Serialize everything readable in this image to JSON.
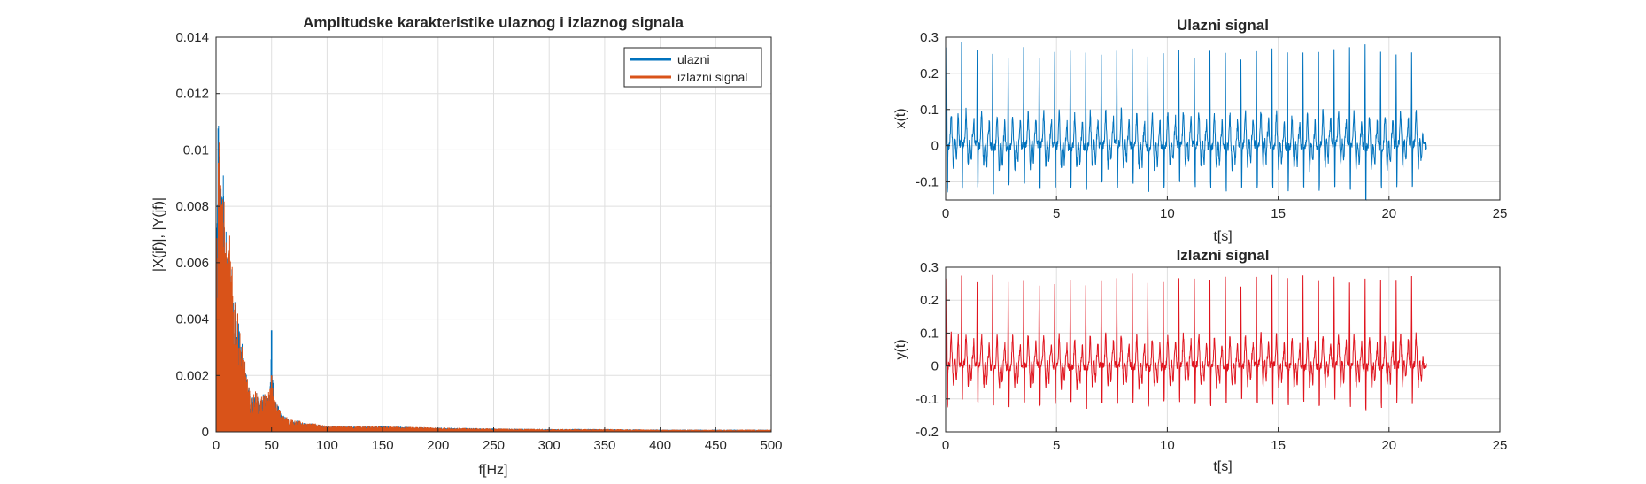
{
  "chart_data": [
    {
      "type": "line",
      "title": "Amplitudske karakteristike ulaznog i izlaznog signala",
      "xlabel": "f[Hz]",
      "ylabel": "|X(jf)|, |Y(jf)|",
      "xlim": [
        0,
        500
      ],
      "ylim": [
        0,
        0.014
      ],
      "xticks": [
        "0",
        "50",
        "100",
        "150",
        "200",
        "250",
        "300",
        "350",
        "400",
        "450",
        "500"
      ],
      "yticks": [
        "0",
        "0.002",
        "0.004",
        "0.006",
        "0.008",
        "0.01",
        "0.012",
        "0.014"
      ],
      "grid": true,
      "legend_position": "top-right",
      "series": [
        {
          "name": "ulazni",
          "color": "#0072bd",
          "envelope": {
            "f": [
              0,
              1,
              2,
              3,
              4,
              5,
              6,
              7,
              8,
              9,
              10,
              12,
              14,
              16,
              18,
              20,
              22,
              24,
              26,
              28,
              30,
              32,
              35,
              38,
              40,
              42,
              45,
              48,
              50,
              52,
              55,
              60,
              65,
              70,
              75,
              80,
              90,
              100,
              120,
              150,
              200,
              250,
              300,
              350,
              400,
              450,
              500
            ],
            "max": [
              0.002,
              0.009,
              0.0123,
              0.011,
              0.0095,
              0.009,
              0.0105,
              0.0085,
              0.0075,
              0.0072,
              0.0065,
              0.0072,
              0.006,
              0.0055,
              0.0048,
              0.004,
              0.0035,
              0.003,
              0.0025,
              0.002,
              0.0015,
              0.0012,
              0.0015,
              0.0013,
              0.0012,
              0.0014,
              0.0013,
              0.0015,
              0.0036,
              0.0012,
              0.001,
              0.0006,
              0.0005,
              0.0004,
              0.0004,
              0.0003,
              0.0003,
              0.0002,
              0.0002,
              0.0002,
              0.00015,
              0.00012,
              0.0001,
              0.0001,
              8e-05,
              8e-05,
              8e-05
            ]
          }
        },
        {
          "name": "izlazni signal",
          "color": "#d95319",
          "envelope": {
            "f": [
              0,
              1,
              2,
              3,
              4,
              5,
              6,
              7,
              8,
              9,
              10,
              12,
              14,
              16,
              18,
              20,
              22,
              24,
              26,
              28,
              30,
              32,
              35,
              38,
              40,
              42,
              45,
              48,
              50,
              52,
              55,
              60,
              65,
              70,
              75,
              80,
              90,
              100,
              120,
              150,
              200,
              250,
              300,
              350,
              400,
              450,
              500
            ],
            "max": [
              0.002,
              0.009,
              0.0123,
              0.011,
              0.0095,
              0.009,
              0.0105,
              0.0085,
              0.0075,
              0.0072,
              0.0065,
              0.0072,
              0.006,
              0.0055,
              0.0048,
              0.004,
              0.0035,
              0.003,
              0.0025,
              0.002,
              0.0015,
              0.0012,
              0.0015,
              0.0013,
              0.0012,
              0.0014,
              0.0013,
              0.0015,
              0.002,
              0.0012,
              0.001,
              0.0006,
              0.0005,
              0.0004,
              0.0004,
              0.0003,
              0.0003,
              0.0002,
              0.0002,
              0.0002,
              0.00015,
              0.00012,
              0.0001,
              0.0001,
              8e-05,
              8e-05,
              8e-05
            ]
          }
        }
      ]
    },
    {
      "type": "line",
      "title": "Ulazni signal",
      "xlabel": "t[s]",
      "ylabel": "x(t)",
      "xlim": [
        0,
        25
      ],
      "ylim": [
        -0.15,
        0.3
      ],
      "xticks": [
        "0",
        "5",
        "10",
        "15",
        "20",
        "25"
      ],
      "yticks": [
        "-0.1",
        "0",
        "0.1",
        "0.2",
        "0.3"
      ],
      "grid": true,
      "series": [
        {
          "color": "#0072bd",
          "t_end": 21.7,
          "beat_times": [
            0.05,
            0.72,
            1.42,
            2.12,
            2.82,
            3.52,
            4.22,
            4.92,
            5.62,
            6.32,
            7.02,
            7.72,
            8.42,
            9.12,
            9.82,
            10.52,
            11.22,
            11.92,
            12.62,
            13.32,
            14.02,
            14.72,
            15.42,
            16.12,
            16.82,
            17.52,
            18.22,
            18.92,
            19.62,
            20.32,
            21.02
          ],
          "peak_values": [
            0.27,
            0.27,
            0.26,
            0.27,
            0.25,
            0.26,
            0.25,
            0.26,
            0.27,
            0.25,
            0.26,
            0.25,
            0.27,
            0.25,
            0.26,
            0.27,
            0.25,
            0.26,
            0.27,
            0.25,
            0.26,
            0.27,
            0.26,
            0.27,
            0.25,
            0.26,
            0.26,
            0.28,
            0.26,
            0.25,
            0.26
          ],
          "trough_values": [
            -0.14,
            -0.14,
            -0.13,
            -0.14,
            -0.13,
            -0.13,
            -0.14,
            -0.13,
            -0.13,
            -0.14,
            -0.13,
            -0.14,
            -0.13,
            -0.14,
            -0.13,
            -0.13,
            -0.14,
            -0.13,
            -0.14,
            -0.13,
            -0.14,
            -0.13,
            -0.14,
            -0.13,
            -0.14,
            -0.13,
            -0.14,
            -0.16,
            -0.14,
            -0.13,
            -0.13
          ]
        }
      ]
    },
    {
      "type": "line",
      "title": "Izlazni signal",
      "xlabel": "t[s]",
      "ylabel": "y(t)",
      "xlim": [
        0,
        25
      ],
      "ylim": [
        -0.2,
        0.3
      ],
      "xticks": [
        "0",
        "5",
        "10",
        "15",
        "20",
        "25"
      ],
      "yticks": [
        "-0.2",
        "-0.1",
        "0",
        "0.1",
        "0.2",
        "0.3"
      ],
      "grid": true,
      "series": [
        {
          "color": "#e0141e",
          "t_end": 21.7,
          "beat_times": [
            0.05,
            0.72,
            1.42,
            2.12,
            2.82,
            3.52,
            4.22,
            4.92,
            5.62,
            6.32,
            7.02,
            7.72,
            8.42,
            9.12,
            9.82,
            10.52,
            11.22,
            11.92,
            12.62,
            13.32,
            14.02,
            14.72,
            15.42,
            16.12,
            16.82,
            17.52,
            18.22,
            18.92,
            19.62,
            20.32,
            21.02
          ],
          "peak_values": [
            0.27,
            0.27,
            0.26,
            0.27,
            0.25,
            0.26,
            0.25,
            0.26,
            0.27,
            0.25,
            0.26,
            0.25,
            0.27,
            0.25,
            0.26,
            0.27,
            0.25,
            0.26,
            0.27,
            0.25,
            0.26,
            0.27,
            0.26,
            0.27,
            0.25,
            0.26,
            0.26,
            0.27,
            0.26,
            0.25,
            0.26
          ],
          "trough_values": [
            -0.14,
            -0.14,
            -0.13,
            -0.14,
            -0.13,
            -0.13,
            -0.14,
            -0.13,
            -0.13,
            -0.14,
            -0.13,
            -0.14,
            -0.13,
            -0.14,
            -0.13,
            -0.13,
            -0.14,
            -0.13,
            -0.14,
            -0.13,
            -0.14,
            -0.13,
            -0.14,
            -0.13,
            -0.14,
            -0.13,
            -0.14,
            -0.16,
            -0.14,
            -0.13,
            -0.13
          ]
        }
      ]
    }
  ]
}
